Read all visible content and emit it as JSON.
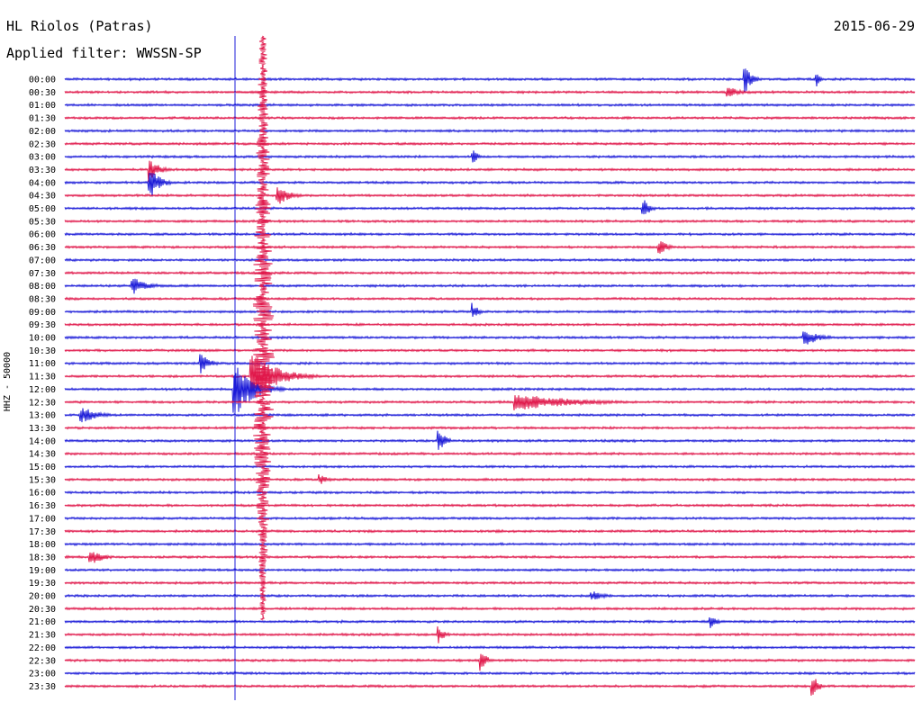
{
  "header": {
    "station": "HL Riolos (Patras)",
    "filter_label": "Applied filter: WWSSN-SP",
    "date": "2015-06-29"
  },
  "chart_data": {
    "type": "helicorder",
    "title": "HL Riolos (Patras)",
    "subtitle": "Applied filter: WWSSN-SP",
    "date": "2015-06-29",
    "ylabel": "HHZ - 50000",
    "row_times": [
      "00:00",
      "00:30",
      "01:00",
      "01:30",
      "02:00",
      "02:30",
      "03:00",
      "03:30",
      "04:00",
      "04:30",
      "05:00",
      "05:30",
      "06:00",
      "06:30",
      "07:00",
      "07:30",
      "08:00",
      "08:30",
      "09:00",
      "09:30",
      "10:00",
      "10:30",
      "11:00",
      "11:30",
      "12:00",
      "12:30",
      "13:00",
      "13:30",
      "14:00",
      "14:30",
      "15:00",
      "15:30",
      "16:00",
      "16:30",
      "17:00",
      "17:30",
      "18:00",
      "18:30",
      "19:00",
      "19:30",
      "20:00",
      "20:30",
      "21:00",
      "21:30",
      "22:00",
      "22:30",
      "23:00",
      "23:30"
    ],
    "row_minutes": 30,
    "colors": [
      "#1b1bd8",
      "#e0174a"
    ],
    "events": [
      {
        "row": 0,
        "at": 0.8,
        "amp": 20,
        "dur": 0.02
      },
      {
        "row": 0,
        "at": 0.885,
        "amp": 10,
        "dur": 0.01
      },
      {
        "row": 1,
        "at": 0.78,
        "amp": 7,
        "dur": 0.04
      },
      {
        "row": 6,
        "at": 0.48,
        "amp": 8,
        "dur": 0.02
      },
      {
        "row": 7,
        "at": 0.1,
        "amp": 14,
        "dur": 0.03
      },
      {
        "row": 8,
        "at": 0.1,
        "amp": 22,
        "dur": 0.03
      },
      {
        "row": 9,
        "at": 0.25,
        "amp": 12,
        "dur": 0.04
      },
      {
        "row": 10,
        "at": 0.68,
        "amp": 14,
        "dur": 0.02
      },
      {
        "row": 13,
        "at": 0.7,
        "amp": 8,
        "dur": 0.03
      },
      {
        "row": 16,
        "at": 0.08,
        "amp": 10,
        "dur": 0.05
      },
      {
        "row": 18,
        "at": 0.48,
        "amp": 10,
        "dur": 0.02
      },
      {
        "row": 20,
        "at": 0.87,
        "amp": 10,
        "dur": 0.05
      },
      {
        "row": 22,
        "at": 0.16,
        "amp": 12,
        "dur": 0.03
      },
      {
        "row": 23,
        "at": 0.22,
        "amp": 30,
        "dur": 0.08
      },
      {
        "row": 24,
        "at": 0.2,
        "amp": 32,
        "dur": 0.06
      },
      {
        "row": 25,
        "at": 0.53,
        "amp": 10,
        "dur": 0.19
      },
      {
        "row": 26,
        "at": 0.02,
        "amp": 10,
        "dur": 0.05
      },
      {
        "row": 28,
        "at": 0.44,
        "amp": 16,
        "dur": 0.02
      },
      {
        "row": 31,
        "at": 0.3,
        "amp": 6,
        "dur": 0.03
      },
      {
        "row": 37,
        "at": 0.03,
        "amp": 10,
        "dur": 0.04
      },
      {
        "row": 40,
        "at": 0.62,
        "amp": 6,
        "dur": 0.04
      },
      {
        "row": 42,
        "at": 0.76,
        "amp": 8,
        "dur": 0.02
      },
      {
        "row": 43,
        "at": 0.44,
        "amp": 10,
        "dur": 0.02
      },
      {
        "row": 45,
        "at": 0.49,
        "amp": 12,
        "dur": 0.02
      },
      {
        "row": 47,
        "at": 0.88,
        "amp": 14,
        "dur": 0.02
      }
    ]
  }
}
